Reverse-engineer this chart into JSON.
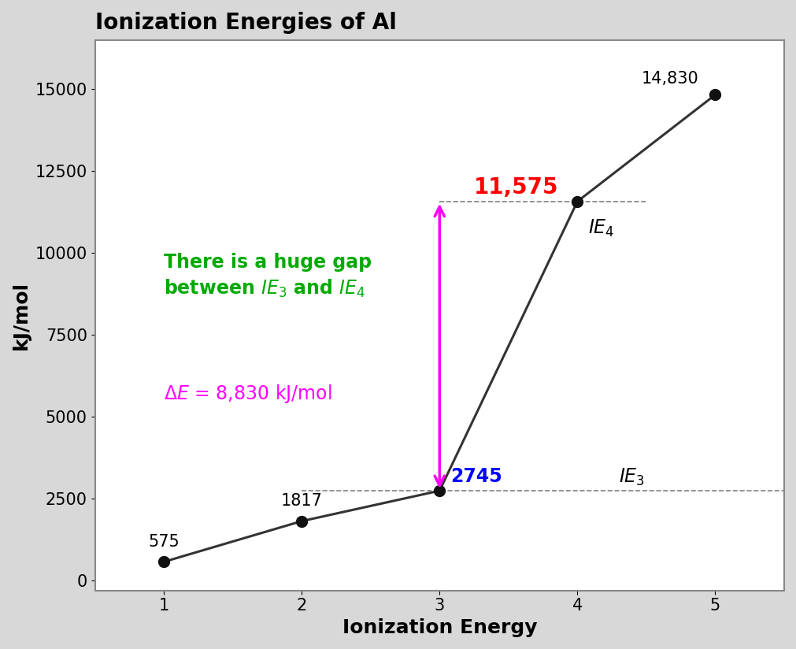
{
  "title": "Ionization Energies of Al",
  "xlabel": "Ionization Energy",
  "ylabel": "kJ/mol",
  "x": [
    1,
    2,
    3,
    4,
    5
  ],
  "y": [
    575,
    1817,
    2745,
    11575,
    14830
  ],
  "xlim": [
    0.5,
    5.5
  ],
  "ylim": [
    -300,
    16500
  ],
  "yticks": [
    0,
    2500,
    5000,
    7500,
    10000,
    12500,
    15000
  ],
  "xticks": [
    1,
    2,
    3,
    4,
    5
  ],
  "line_color": "#333333",
  "marker_color": "#111111",
  "plot_bg_color": "#ffffff",
  "outer_bg_color": "#d8d8d8",
  "title_fontsize": 20,
  "axis_label_fontsize": 18,
  "tick_fontsize": 15,
  "annotation_fontsize": 15,
  "gap_label_color": "#FF0000",
  "huge_gap_color": "#00AA00",
  "arrow_color": "#FF00FF",
  "blue_color": "#0000FF"
}
